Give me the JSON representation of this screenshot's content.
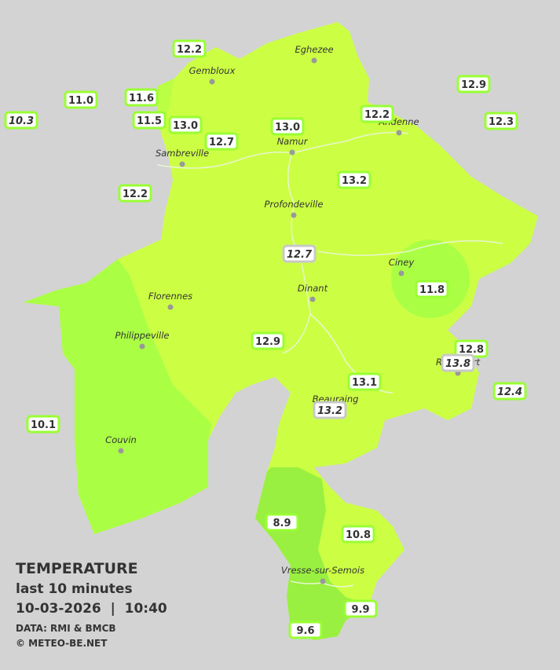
{
  "legend": {
    "title": "TEMPERATURE",
    "subtitle": "last 10 minutes",
    "datetime": "10-03-2026  |  10:40",
    "source": "DATA: RMI & BMCB",
    "copyright": "© METEO-BE.NET"
  },
  "cities": [
    "Eghezee",
    "Gembloux",
    "Andenne",
    "Namur",
    "Sambreville",
    "Profondeville",
    "Ciney",
    "Dinant",
    "Florennes",
    "Philippeville",
    "Rochefort",
    "Beauraing",
    "Couvin",
    "Vresse-sur-Semois"
  ],
  "stations": [
    {
      "label": "12.2",
      "italic": false
    },
    {
      "label": "11.0",
      "italic": false
    },
    {
      "label": "11.6",
      "italic": false
    },
    {
      "label": "11.5",
      "italic": false
    },
    {
      "label": "13.0",
      "italic": false
    },
    {
      "label": "13.0",
      "italic": false
    },
    {
      "label": "12.2",
      "italic": false
    },
    {
      "label": "12.9",
      "italic": false
    },
    {
      "label": "12.3",
      "italic": false
    },
    {
      "label": "10.3",
      "italic": true
    },
    {
      "label": "12.7",
      "italic": false
    },
    {
      "label": "13.2",
      "italic": false
    },
    {
      "label": "12.2",
      "italic": false
    },
    {
      "label": "12.7",
      "italic": true
    },
    {
      "label": "11.8",
      "italic": false
    },
    {
      "label": "12.9",
      "italic": false
    },
    {
      "label": "12.8",
      "italic": false
    },
    {
      "label": "13.8",
      "italic": true
    },
    {
      "label": "13.1",
      "italic": false
    },
    {
      "label": "12.4",
      "italic": true
    },
    {
      "label": "13.2",
      "italic": true
    },
    {
      "label": "10.1",
      "italic": false
    },
    {
      "label": "8.9",
      "italic": false
    },
    {
      "label": "10.8",
      "italic": false
    },
    {
      "label": "9.9",
      "italic": false
    },
    {
      "label": "9.6",
      "italic": false
    }
  ]
}
